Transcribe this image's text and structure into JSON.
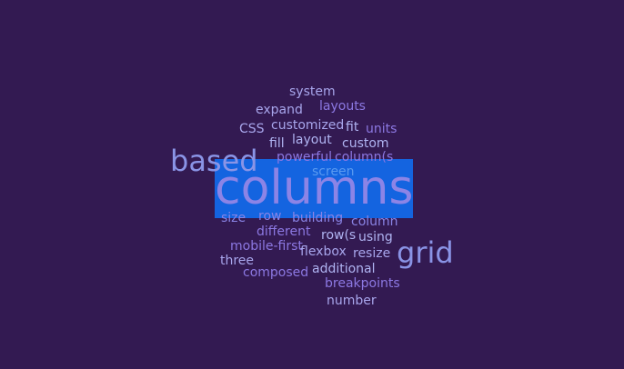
{
  "cloud": {
    "highlight_color": "#1464e0",
    "background_color": "#331a52",
    "selected_word": "columns",
    "words": [
      {
        "text": "system",
        "color": "#a8a6ec"
      },
      {
        "text": "layouts",
        "color": "#8c78e2"
      },
      {
        "text": "expand",
        "color": "#a8a6ec"
      },
      {
        "text": "CSS",
        "color": "#a8a6ec"
      },
      {
        "text": "customized",
        "color": "#a8a6ec"
      },
      {
        "text": "fit",
        "color": "#b0b4f2"
      },
      {
        "text": "units",
        "color": "#8c78e2"
      },
      {
        "text": "fill",
        "color": "#b0b4f2"
      },
      {
        "text": "layout",
        "color": "#b0b4f2"
      },
      {
        "text": "custom",
        "color": "#b0b4f2"
      },
      {
        "text": "based",
        "color": "#8a94e6"
      },
      {
        "text": "powerful",
        "color": "#8c78e2"
      },
      {
        "text": "column(s",
        "color": "#8c78e2"
      },
      {
        "text": "screen",
        "color": "#5a9af0"
      },
      {
        "text": "columns",
        "color": "#8c84e6"
      },
      {
        "text": "size",
        "color": "#8a84e6"
      },
      {
        "text": "row",
        "color": "#8a84e6"
      },
      {
        "text": "building",
        "color": "#8a84e6"
      },
      {
        "text": "column",
        "color": "#8a84e6"
      },
      {
        "text": "different",
        "color": "#8c78e2"
      },
      {
        "text": "row(s",
        "color": "#b0b4f2"
      },
      {
        "text": "using",
        "color": "#b0b4f2"
      },
      {
        "text": "grid",
        "color": "#8a94e6"
      },
      {
        "text": "mobile-first",
        "color": "#8c78e2"
      },
      {
        "text": "flexbox",
        "color": "#a8a6ec"
      },
      {
        "text": "resize",
        "color": "#a8a6ec"
      },
      {
        "text": "three",
        "color": "#a8a6ec"
      },
      {
        "text": "composed",
        "color": "#8c78e2"
      },
      {
        "text": "additional",
        "color": "#b0b4f2"
      },
      {
        "text": "breakpoints",
        "color": "#8c78e2"
      },
      {
        "text": "number",
        "color": "#a8a6ec"
      }
    ]
  }
}
